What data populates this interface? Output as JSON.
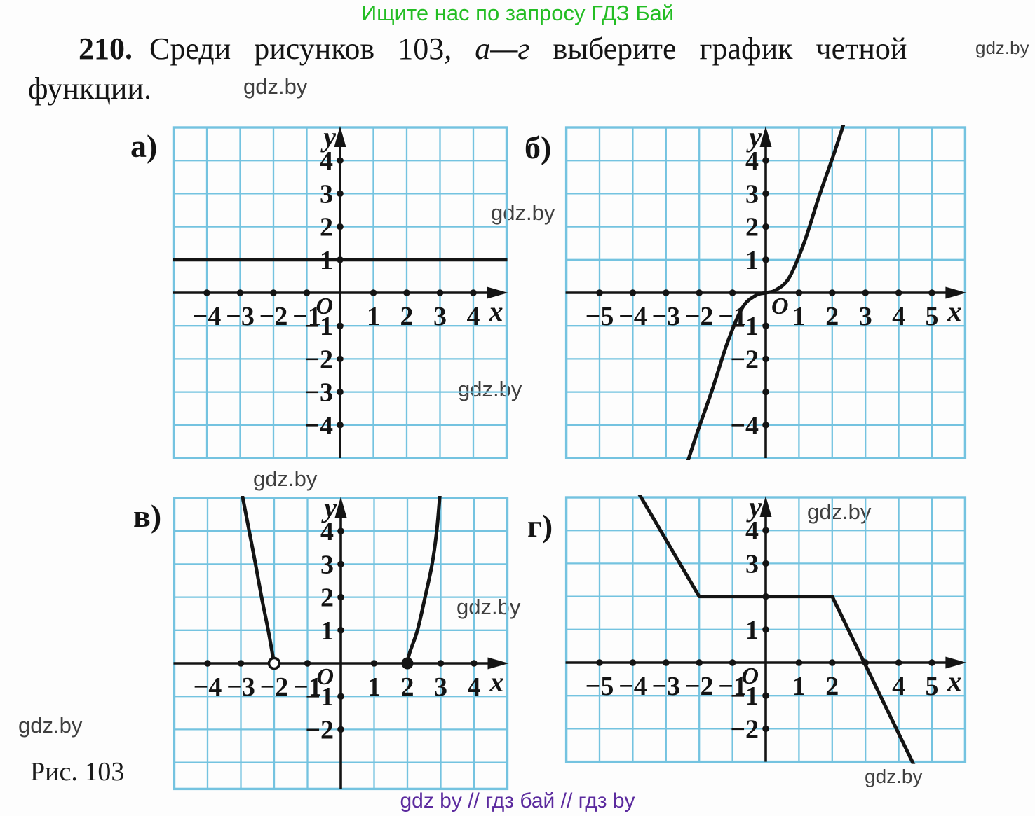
{
  "page": {
    "header_green": "Ищите нас по запросу ГДЗ Бай",
    "problem_number": "210.",
    "problem_part1": "Среди рисунков 103,",
    "problem_part2": "а—г",
    "problem_part3": "выберите график четной",
    "problem_line2": "функции.",
    "figure_caption": "Рис. 103",
    "footer_purple": "gdz by  //  гдз бай  //  гдз by",
    "watermark": "gdz.by"
  },
  "colors": {
    "grid_blue": "#74c3e0",
    "axis_black": "#141414",
    "header_green": "#23bd23",
    "footer_purple": "#5b2a9e",
    "watermark_gray": "#3f3f3f"
  },
  "chart_data": [
    {
      "id": "a",
      "panel_label": "а)",
      "type": "line",
      "x_range": [
        -5,
        5
      ],
      "y_range": [
        -5,
        5
      ],
      "x_axis_label": "x",
      "y_axis_label": "y",
      "origin_label": "O",
      "grid": true,
      "x_tick_dots": [
        -4,
        -3,
        -2,
        -1,
        1,
        2,
        3,
        4
      ],
      "y_tick_dots": [
        -4,
        -3,
        -2,
        -1,
        1,
        2,
        3,
        4
      ],
      "x_tick_labels": [
        [
          -4,
          "−4"
        ],
        [
          -3,
          "−3"
        ],
        [
          -2,
          "−2"
        ],
        [
          -1,
          "−1"
        ],
        [
          1,
          "1"
        ],
        [
          2,
          "2"
        ],
        [
          3,
          "3"
        ],
        [
          4,
          "4"
        ]
      ],
      "y_tick_labels": [
        [
          -4,
          "−4"
        ],
        [
          -3,
          "−3"
        ],
        [
          -2,
          "−2"
        ],
        [
          -1,
          "−1"
        ],
        [
          1,
          "1"
        ],
        [
          2,
          "2"
        ],
        [
          3,
          "3"
        ],
        [
          4,
          "4"
        ]
      ],
      "curves": [
        {
          "name": "horizontal-line-y-1",
          "smooth": false,
          "points": [
            [
              -5,
              1
            ],
            [
              5,
              1
            ]
          ]
        }
      ],
      "markers": []
    },
    {
      "id": "b",
      "panel_label": "б)",
      "type": "line",
      "x_range": [
        -6,
        6
      ],
      "y_range": [
        -5,
        5
      ],
      "x_axis_label": "x",
      "y_axis_label": "y",
      "origin_label": "O",
      "grid": true,
      "x_tick_dots": [
        -5,
        -4,
        -3,
        -2,
        -1,
        1,
        2,
        3,
        4,
        5
      ],
      "y_tick_dots": [
        -4,
        -3,
        -2,
        -1,
        1,
        2,
        3,
        4
      ],
      "x_tick_labels": [
        [
          -5,
          "−5"
        ],
        [
          -4,
          "−4"
        ],
        [
          -3,
          "−3"
        ],
        [
          -2,
          "−2"
        ],
        [
          -1,
          "−1"
        ],
        [
          1,
          "1"
        ],
        [
          2,
          "2"
        ],
        [
          3,
          "3"
        ],
        [
          4,
          "4"
        ],
        [
          5,
          "5"
        ]
      ],
      "y_tick_labels": [
        [
          -4,
          "−4"
        ],
        [
          -2,
          "−2"
        ],
        [
          -1,
          "−1"
        ],
        [
          1,
          "1"
        ],
        [
          2,
          "2"
        ],
        [
          3,
          "3"
        ],
        [
          4,
          "4"
        ]
      ],
      "curves": [
        {
          "name": "cubic-curve",
          "smooth": true,
          "points": [
            [
              -2.36,
              -5.15
            ],
            [
              -2.05,
              -4.2
            ],
            [
              -1.6,
              -2.9
            ],
            [
              -1.15,
              -1.5
            ],
            [
              -0.7,
              -0.45
            ],
            [
              -0.3,
              -0.08
            ],
            [
              0,
              0
            ],
            [
              0.3,
              0.08
            ],
            [
              0.7,
              0.45
            ],
            [
              1.15,
              1.5
            ],
            [
              1.6,
              2.9
            ],
            [
              2.05,
              4.2
            ],
            [
              2.36,
              5.15
            ]
          ]
        }
      ],
      "markers": []
    },
    {
      "id": "v",
      "panel_label": "в)",
      "type": "line",
      "x_range": [
        -5,
        5
      ],
      "y_range": [
        -3.8,
        5
      ],
      "x_axis_label": "x",
      "y_axis_label": "y",
      "origin_label": "O",
      "grid": true,
      "x_tick_dots": [
        -4,
        -3,
        -2,
        -1,
        1,
        2,
        3,
        4
      ],
      "y_tick_dots": [
        -2,
        -1,
        1,
        2,
        3,
        4
      ],
      "x_tick_labels": [
        [
          -4,
          "−4"
        ],
        [
          -3,
          "−3"
        ],
        [
          -2,
          "−2"
        ],
        [
          -1,
          "−1"
        ],
        [
          1,
          "1"
        ],
        [
          2,
          "2"
        ],
        [
          3,
          "3"
        ],
        [
          4,
          "4"
        ]
      ],
      "y_tick_labels": [
        [
          -2,
          "−2"
        ],
        [
          -1,
          "−1"
        ],
        [
          1,
          "1"
        ],
        [
          2,
          "2"
        ],
        [
          3,
          "3"
        ],
        [
          4,
          "4"
        ]
      ],
      "curves": [
        {
          "name": "left-branch",
          "smooth": true,
          "points": [
            [
              -2.97,
              5.15
            ],
            [
              -2.75,
              4
            ],
            [
              -2.56,
              3
            ],
            [
              -2.38,
              2
            ],
            [
              -2.18,
              1
            ],
            [
              -2.02,
              0.1
            ],
            [
              -2,
              0
            ]
          ]
        },
        {
          "name": "right-branch",
          "smooth": true,
          "points": [
            [
              2,
              0
            ],
            [
              2.06,
              0.3
            ],
            [
              2.3,
              1
            ],
            [
              2.53,
              2
            ],
            [
              2.74,
              3
            ],
            [
              2.88,
              4
            ],
            [
              2.98,
              5.15
            ]
          ]
        }
      ],
      "markers": [
        {
          "x": -2,
          "y": 0,
          "style": "open"
        },
        {
          "x": 2,
          "y": 0,
          "style": "filled"
        }
      ]
    },
    {
      "id": "g",
      "panel_label": "г)",
      "type": "line",
      "x_range": [
        -6,
        6
      ],
      "y_range": [
        -3,
        5
      ],
      "x_axis_label": "x",
      "y_axis_label": "y",
      "origin_label": "O",
      "grid": true,
      "x_tick_dots": [
        -5,
        -4,
        -3,
        -2,
        -1,
        1,
        2,
        3,
        4,
        5
      ],
      "y_tick_dots": [
        -2,
        -1,
        1,
        2,
        3,
        4
      ],
      "x_tick_labels": [
        [
          -5,
          "−5"
        ],
        [
          -4,
          "−4"
        ],
        [
          -3,
          "−3"
        ],
        [
          -2,
          "−2"
        ],
        [
          -1,
          "−1"
        ],
        [
          1,
          "1"
        ],
        [
          2,
          "2"
        ],
        [
          4,
          "4"
        ],
        [
          5,
          "5"
        ]
      ],
      "y_tick_labels": [
        [
          -2,
          "−2"
        ],
        [
          -1,
          "−1"
        ],
        [
          1,
          "1"
        ],
        [
          3,
          "3"
        ],
        [
          4,
          "4"
        ]
      ],
      "curves": [
        {
          "name": "piecewise-line",
          "smooth": false,
          "points": [
            [
              -3.82,
              5.12
            ],
            [
              -2,
              2
            ],
            [
              2,
              2
            ],
            [
              4.46,
              -3.1
            ]
          ]
        }
      ],
      "markers": []
    }
  ]
}
